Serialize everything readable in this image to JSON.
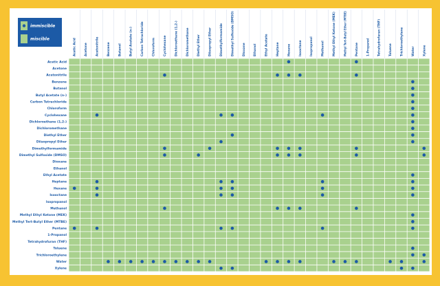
{
  "legend": {
    "immiscible": "immiscible",
    "miscible": "miscible"
  },
  "columns": [
    "Acetic Acid",
    "Acetone",
    "Acetonitrile",
    "Benzene",
    "Butanol",
    "Butyl Acetate (n-)",
    "Carbon Tetrachloride",
    "Chloroform",
    "Cyclohexane",
    "Dichloroethane (1,2-)",
    "Dichloromethane",
    "Diethyl Ether",
    "Diisopropyl Ether",
    "Dimethylformamide",
    "Dimethyl Sulfoxide (DMSO)",
    "Dioxane",
    "Ethanol",
    "Ethyl Acetate",
    "Heptane",
    "Hexane",
    "Isooctane",
    "Isopropanol",
    "Methanol",
    "Methyl Ethyl Ketone (MEK)",
    "Methyl Tert-Butyl Ether (MTBE)",
    "Pentane",
    "1-Propanol",
    "Tetrahydrofuran (THF)",
    "Toluene",
    "Trichloroethylene",
    "Water",
    "Xylene"
  ],
  "rows": [
    {
      "label": "Acetic Acid",
      "immiscible": [
        19,
        25
      ]
    },
    {
      "label": "Acetone",
      "immiscible": []
    },
    {
      "label": "Acetonitrile",
      "immiscible": [
        8,
        18,
        19,
        20,
        25
      ]
    },
    {
      "label": "Benzene",
      "immiscible": [
        30
      ]
    },
    {
      "label": "Butanol",
      "immiscible": [
        30
      ]
    },
    {
      "label": "Butyl Acetate (n-)",
      "immiscible": [
        30
      ]
    },
    {
      "label": "Carbon Tetrachloride",
      "immiscible": [
        30
      ]
    },
    {
      "label": "Chloroform",
      "immiscible": [
        30
      ]
    },
    {
      "label": "Cyclohexane",
      "immiscible": [
        2,
        13,
        14,
        22,
        30
      ]
    },
    {
      "label": "Dichloroethane (1,2-)",
      "immiscible": [
        30
      ]
    },
    {
      "label": "Dichloromethane",
      "immiscible": [
        30
      ]
    },
    {
      "label": "Diethyl Ether",
      "immiscible": [
        14,
        30
      ]
    },
    {
      "label": "Diisopropyl Ether",
      "immiscible": [
        13,
        30
      ]
    },
    {
      "label": "Dimethylformamide",
      "immiscible": [
        8,
        12,
        18,
        19,
        20,
        25,
        31
      ]
    },
    {
      "label": "Dimethyl Sulfoxide (DMSO)",
      "immiscible": [
        8,
        11,
        18,
        19,
        20,
        25,
        31
      ]
    },
    {
      "label": "Dioxane",
      "immiscible": []
    },
    {
      "label": "Ethanol",
      "immiscible": []
    },
    {
      "label": "Ethyl Acetate",
      "immiscible": [
        30
      ]
    },
    {
      "label": "Heptane",
      "immiscible": [
        2,
        13,
        14,
        22,
        30
      ]
    },
    {
      "label": "Hexane",
      "immiscible": [
        0,
        2,
        13,
        14,
        22,
        30
      ]
    },
    {
      "label": "Isooctane",
      "immiscible": [
        2,
        13,
        14,
        22,
        30
      ]
    },
    {
      "label": "Isopropanol",
      "immiscible": []
    },
    {
      "label": "Methanol",
      "immiscible": [
        8,
        18,
        19,
        20,
        25
      ]
    },
    {
      "label": "Methyl Ethyl Ketone (MEK)",
      "immiscible": [
        30
      ]
    },
    {
      "label": "Methyl Tert-Butyl Ether (MTBE)",
      "immiscible": [
        30
      ]
    },
    {
      "label": "Pentane",
      "immiscible": [
        0,
        2,
        13,
        14,
        22,
        30
      ]
    },
    {
      "label": "1-Propanol",
      "immiscible": []
    },
    {
      "label": "Tetrahydrofuran (THF)",
      "immiscible": []
    },
    {
      "label": "Toluene",
      "immiscible": [
        30
      ]
    },
    {
      "label": "Trichloroethylene",
      "immiscible": [
        30,
        31
      ]
    },
    {
      "label": "Water",
      "immiscible": [
        3,
        4,
        5,
        6,
        7,
        8,
        9,
        10,
        11,
        12,
        17,
        18,
        19,
        20,
        23,
        24,
        25,
        28,
        29,
        31
      ]
    },
    {
      "label": "Xylene",
      "immiscible": [
        13,
        14,
        29,
        30
      ]
    }
  ]
}
